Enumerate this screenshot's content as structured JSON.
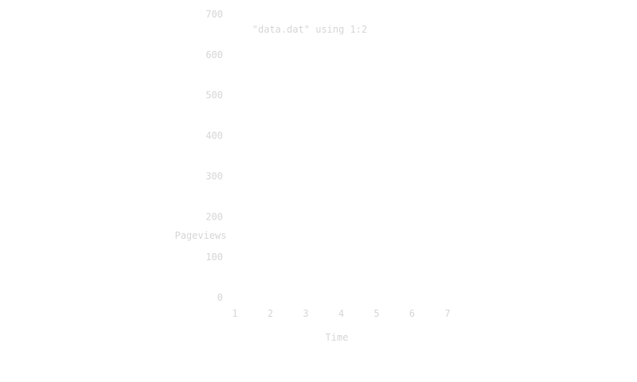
{
  "chart_data": {
    "type": "line",
    "xlabel": "Time",
    "ylabel": "Pageviews",
    "legend": "\"data.dat\" using 1:2",
    "legend_position": "top-left",
    "xticks": [
      "1",
      "2",
      "3",
      "4",
      "5",
      "6",
      "7"
    ],
    "yticks": [
      "0",
      "100",
      "200",
      "300",
      "400",
      "500",
      "600",
      "700"
    ],
    "xlim": [
      1,
      7
    ],
    "ylim": [
      0,
      700
    ],
    "grid": false,
    "series": [
      {
        "name": "\"data.dat\" using 1:2",
        "x": [],
        "y": []
      }
    ],
    "colors": {
      "text": "#d6d6d6",
      "background": "#ffffff"
    }
  }
}
